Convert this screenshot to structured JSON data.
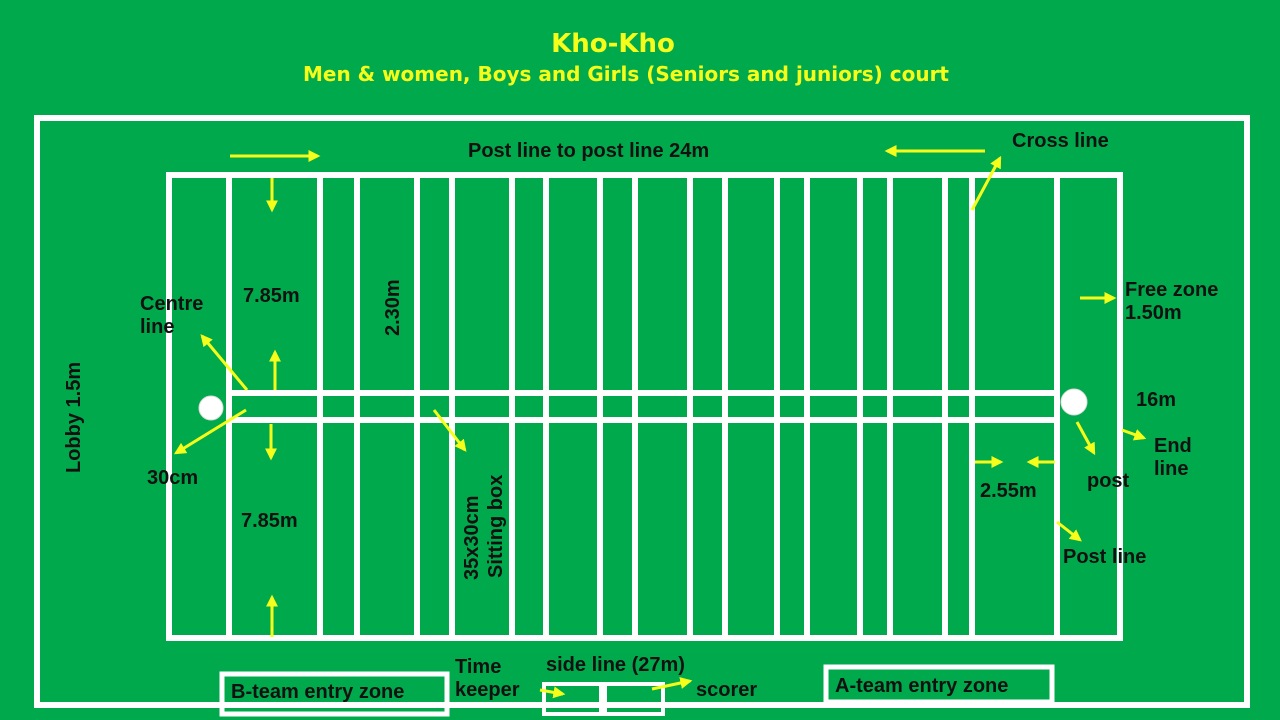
{
  "colors": {
    "background": "#00aa4c",
    "lines": "#ffffff",
    "arrows": "#f5ff1a",
    "title": "#f5ff1a",
    "text": "#111111"
  },
  "header": {
    "title": "Kho-Kho",
    "subtitle": "Men & women, Boys and Girls (Seniors and juniors) court"
  },
  "labels": {
    "post_line_to_post_line": "Post line to post line 24m",
    "cross_line": "Cross line",
    "free_zone_1": "Free zone",
    "free_zone_2": "1.50m",
    "sixteen_m": "16m",
    "end_line_1": "End",
    "end_line_2": "line",
    "post": "post",
    "post_line": "Post line",
    "two_55": "2.55m",
    "lobby": "Lobby 1.5m",
    "centre_line_1": "Centre",
    "centre_line_2": "line",
    "seven_85_top": "7.85m",
    "seven_85_bottom": "7.85m",
    "two_30": "2.30m",
    "thirty_cm": "30cm",
    "sitting_box_1": "35x30cm",
    "sitting_box_2": "Sitting box",
    "time_keeper_1": "Time",
    "time_keeper_2": "keeper",
    "side_line": "side line (27m)",
    "scorer": "scorer",
    "b_team_zone": "B-team entry zone",
    "a_team_zone": "A-team entry zone"
  }
}
